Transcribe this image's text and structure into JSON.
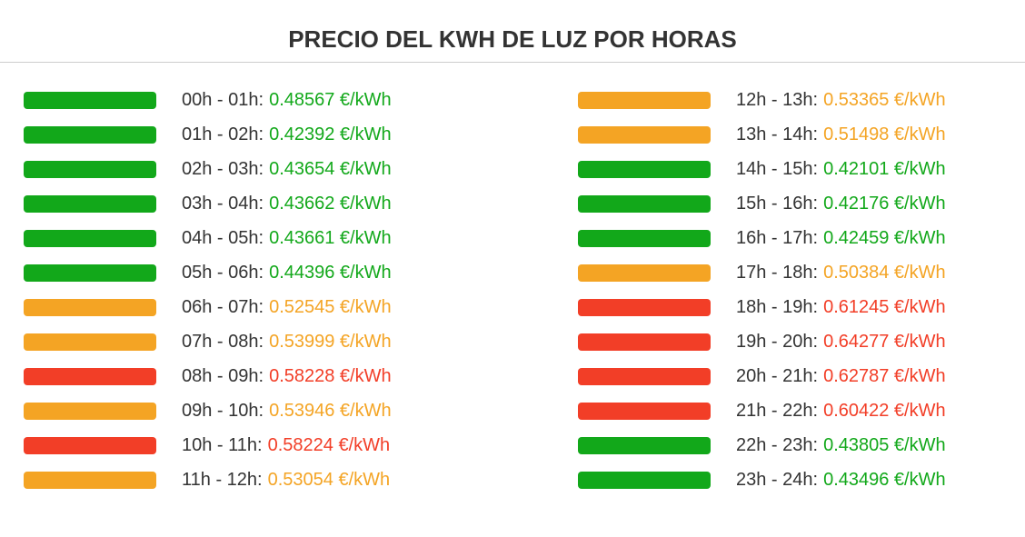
{
  "header": {
    "title": "PRECIO DEL KWH DE LUZ POR HORAS"
  },
  "rows": [
    {
      "hours": "00h - 01h:",
      "price": "0.48567 €/kWh",
      "color": "#12a81a"
    },
    {
      "hours": "01h - 02h:",
      "price": "0.42392 €/kWh",
      "color": "#12a81a"
    },
    {
      "hours": "02h - 03h:",
      "price": "0.43654 €/kWh",
      "color": "#12a81a"
    },
    {
      "hours": "03h - 04h:",
      "price": "0.43662 €/kWh",
      "color": "#12a81a"
    },
    {
      "hours": "04h - 05h:",
      "price": "0.43661 €/kWh",
      "color": "#12a81a"
    },
    {
      "hours": "05h - 06h:",
      "price": "0.44396 €/kWh",
      "color": "#12a81a"
    },
    {
      "hours": "06h - 07h:",
      "price": "0.52545 €/kWh",
      "color": "#f4a424"
    },
    {
      "hours": "07h - 08h:",
      "price": "0.53999 €/kWh",
      "color": "#f4a424"
    },
    {
      "hours": "08h - 09h:",
      "price": "0.58228 €/kWh",
      "color": "#f23e27"
    },
    {
      "hours": "09h - 10h:",
      "price": "0.53946 €/kWh",
      "color": "#f4a424"
    },
    {
      "hours": "10h - 11h:",
      "price": "0.58224 €/kWh",
      "color": "#f23e27"
    },
    {
      "hours": "11h - 12h:",
      "price": "0.53054 €/kWh",
      "color": "#f4a424"
    },
    {
      "hours": "12h - 13h:",
      "price": "0.53365 €/kWh",
      "color": "#f4a424"
    },
    {
      "hours": "13h - 14h:",
      "price": "0.51498 €/kWh",
      "color": "#f4a424"
    },
    {
      "hours": "14h - 15h:",
      "price": "0.42101 €/kWh",
      "color": "#12a81a"
    },
    {
      "hours": "15h - 16h:",
      "price": "0.42176 €/kWh",
      "color": "#12a81a"
    },
    {
      "hours": "16h - 17h:",
      "price": "0.42459 €/kWh",
      "color": "#12a81a"
    },
    {
      "hours": "17h - 18h:",
      "price": "0.50384 €/kWh",
      "color": "#f4a424"
    },
    {
      "hours": "18h - 19h:",
      "price": "0.61245 €/kWh",
      "color": "#f23e27"
    },
    {
      "hours": "19h - 20h:",
      "price": "0.64277 €/kWh",
      "color": "#f23e27"
    },
    {
      "hours": "20h - 21h:",
      "price": "0.62787 €/kWh",
      "color": "#f23e27"
    },
    {
      "hours": "21h - 22h:",
      "price": "0.60422 €/kWh",
      "color": "#f23e27"
    },
    {
      "hours": "22h - 23h:",
      "price": "0.43805 €/kWh",
      "color": "#12a81a"
    },
    {
      "hours": "23h - 24h:",
      "price": "0.43496 €/kWh",
      "color": "#12a81a"
    }
  ]
}
